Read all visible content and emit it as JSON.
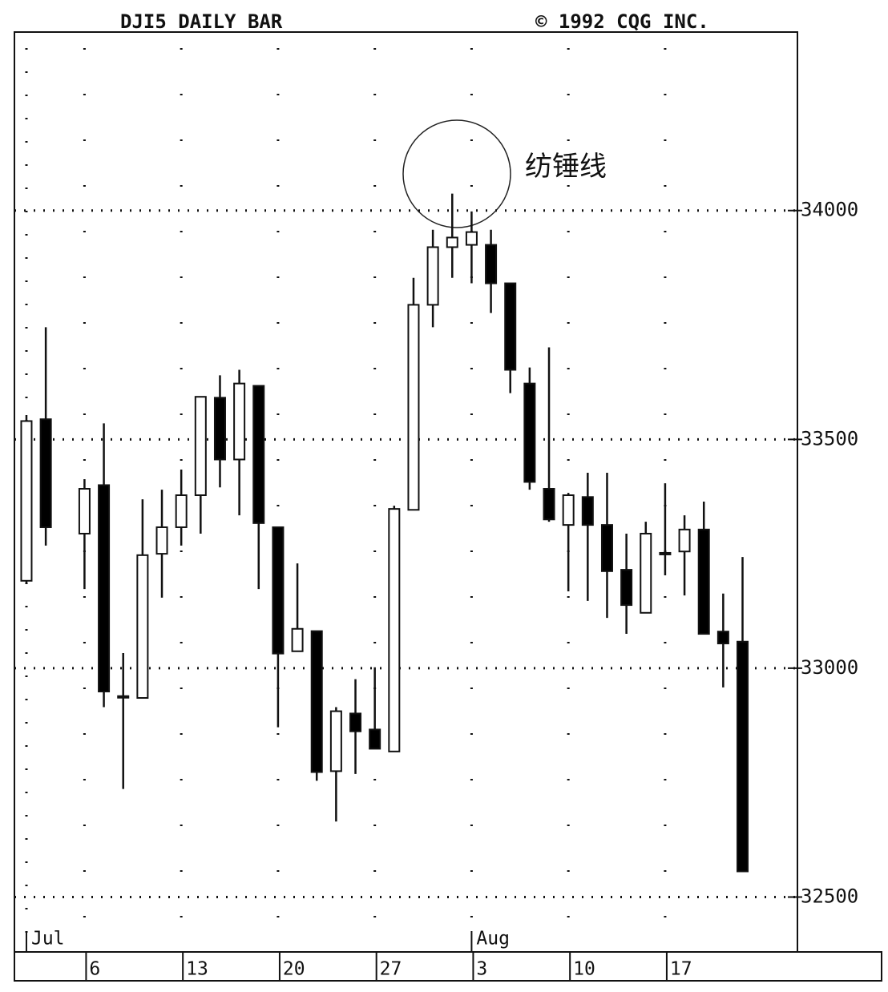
{
  "chart_data": {
    "type": "candlestick",
    "title": "DJI5 DAILY BAR",
    "subtitle": "© 1992 CQG INC.",
    "annotation": "纺锤线",
    "categories": [
      null,
      null,
      null,
      "6",
      null,
      null,
      null,
      null,
      "13",
      null,
      null,
      null,
      null,
      "20",
      null,
      null,
      null,
      null,
      "27",
      null,
      null,
      null,
      null,
      "3",
      null,
      null,
      null,
      null,
      "10",
      null,
      null,
      null,
      null,
      "17",
      null,
      null,
      null,
      null
    ],
    "month_categories": [
      "Jul",
      null,
      null,
      null,
      null,
      null,
      null,
      null,
      null,
      null,
      null,
      null,
      null,
      null,
      null,
      null,
      null,
      null,
      null,
      null,
      null,
      null,
      null,
      "Aug",
      null,
      null,
      null,
      null,
      null,
      null,
      null,
      null,
      null,
      null,
      null,
      null,
      null,
      null
    ],
    "series": [
      {
        "up_color": "#ffffff",
        "down_color": "#000000",
        "open": [
          33191,
          33544,
          null,
          33294,
          33400,
          32939,
          32935,
          33250,
          33308,
          33378,
          33591,
          33456,
          33617,
          33308,
          33037,
          33081,
          32775,
          32901,
          32866,
          32818,
          33346,
          33794,
          33920,
          33925,
          33925,
          33841,
          33622,
          33392,
          33313,
          33374,
          33313,
          33215,
          33121,
          33252,
          33255,
          33303,
          33080,
          33058
        ],
        "high": [
          33553,
          33745,
          null,
          33413,
          33535,
          33033,
          33369,
          33390,
          33434,
          33593,
          33640,
          33652,
          33617,
          33308,
          33229,
          33081,
          32915,
          32976,
          33002,
          33355,
          33853,
          33958,
          34037,
          33998,
          33958,
          33841,
          33657,
          33701,
          33383,
          33427,
          33427,
          33294,
          33320,
          33404,
          33334,
          33364,
          33163,
          33243
        ],
        "low": [
          33185,
          33268,
          null,
          33173,
          32915,
          32736,
          32935,
          33154,
          33268,
          33294,
          33395,
          33334,
          33173,
          32871,
          33037,
          32754,
          32665,
          32769,
          32824,
          32818,
          33346,
          33745,
          33853,
          33841,
          33776,
          33601,
          33390,
          33320,
          33168,
          33147,
          33110,
          33075,
          33121,
          33203,
          33159,
          33075,
          32958,
          32556
        ],
        "close": [
          33540,
          33308,
          null,
          33392,
          32949,
          32939,
          33247,
          33308,
          33378,
          33593,
          33456,
          33622,
          33317,
          33032,
          33086,
          32773,
          32906,
          32862,
          32824,
          33348,
          33794,
          33920,
          33941,
          33953,
          33841,
          33652,
          33407,
          33325,
          33378,
          33313,
          33212,
          33138,
          33294,
          33252,
          33303,
          33075,
          33054,
          32556
        ]
      }
    ],
    "ylim": [
      32380,
      34390
    ],
    "yticks": [
      32500,
      33000,
      33500,
      34000
    ],
    "grid": true
  }
}
